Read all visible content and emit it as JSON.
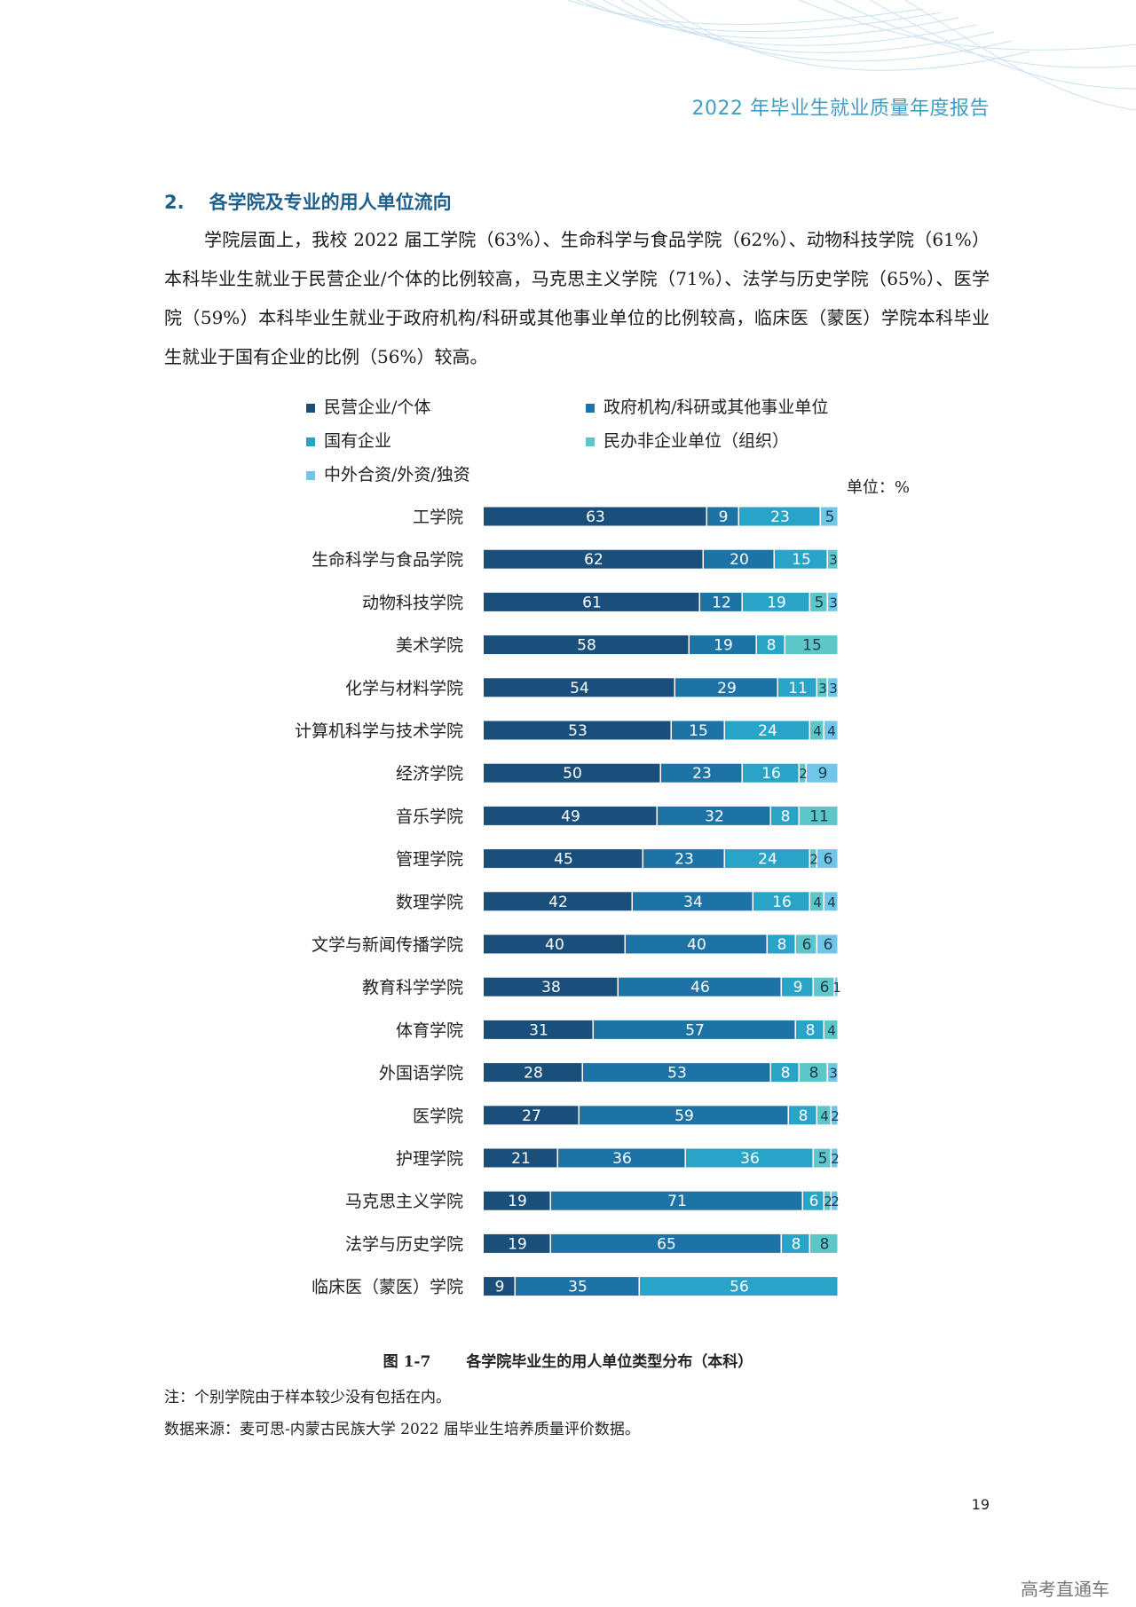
{
  "header": {
    "title": "2022 年毕业生就业质量年度报告"
  },
  "section": {
    "number": "2.",
    "title": "各学院及专业的用人单位流向",
    "paragraph": "学院层面上，我校 2022 届工学院（63%）、生命科学与食品学院（62%）、动物科技学院（61%）本科毕业生就业于民营企业/个体的比例较高，马克思主义学院（71%）、法学与历史学院（65%）、医学院（59%）本科毕业生就业于政府机构/科研或其他事业单位的比例较高，临床医（蒙医）学院本科毕业生就业于国有企业的比例（56%）较高。"
  },
  "colors": {
    "accent": "#1e5f8c",
    "header": "#3f9fc2",
    "series": [
      "#1a4f7c",
      "#1d72a6",
      "#2aa3c8",
      "#5cc6c9",
      "#6fc6e9"
    ]
  },
  "chart_data": {
    "type": "bar",
    "orientation": "horizontal",
    "stacked": true,
    "unit_label": "单位：%",
    "legend_position": "top",
    "categories": [
      "工学院",
      "生命科学与食品学院",
      "动物科技学院",
      "美术学院",
      "化学与材料学院",
      "计算机科学与技术学院",
      "经济学院",
      "音乐学院",
      "管理学院",
      "数理学院",
      "文学与新闻传播学院",
      "教育科学学院",
      "体育学院",
      "外国语学院",
      "医学院",
      "护理学院",
      "马克思主义学院",
      "法学与历史学院",
      "临床医（蒙医）学院"
    ],
    "series": [
      {
        "name": "民营企业/个体",
        "values": [
          63,
          62,
          61,
          58,
          54,
          53,
          50,
          49,
          45,
          42,
          40,
          38,
          31,
          28,
          27,
          21,
          19,
          19,
          9
        ]
      },
      {
        "name": "政府机构/科研或其他事业单位",
        "values": [
          9,
          20,
          12,
          19,
          29,
          15,
          23,
          32,
          23,
          34,
          40,
          46,
          57,
          53,
          59,
          36,
          71,
          65,
          35
        ]
      },
      {
        "name": "国有企业",
        "values": [
          23,
          15,
          19,
          8,
          11,
          24,
          16,
          8,
          24,
          16,
          8,
          9,
          8,
          8,
          8,
          36,
          6,
          8,
          56
        ]
      },
      {
        "name": "民办非企业单位（组织）",
        "values": [
          0,
          3,
          5,
          15,
          3,
          4,
          2,
          11,
          2,
          4,
          6,
          6,
          4,
          8,
          4,
          5,
          2,
          8,
          0
        ]
      },
      {
        "name": "中外合资/外资/独资",
        "values": [
          5,
          0,
          3,
          0,
          3,
          4,
          9,
          0,
          6,
          4,
          6,
          1,
          0,
          3,
          2,
          2,
          2,
          0,
          0
        ]
      }
    ],
    "xlim": [
      0,
      100
    ]
  },
  "figure": {
    "number": "图 1-7",
    "title": "各学院毕业生的用人单位类型分布（本科）"
  },
  "notes": {
    "note": "注：个别学院由于样本较少没有包括在内。",
    "source": "数据来源：麦可思-内蒙古民族大学 2022 届毕业生培养质量评价数据。"
  },
  "page_number": "19",
  "watermark": "高考直通车"
}
